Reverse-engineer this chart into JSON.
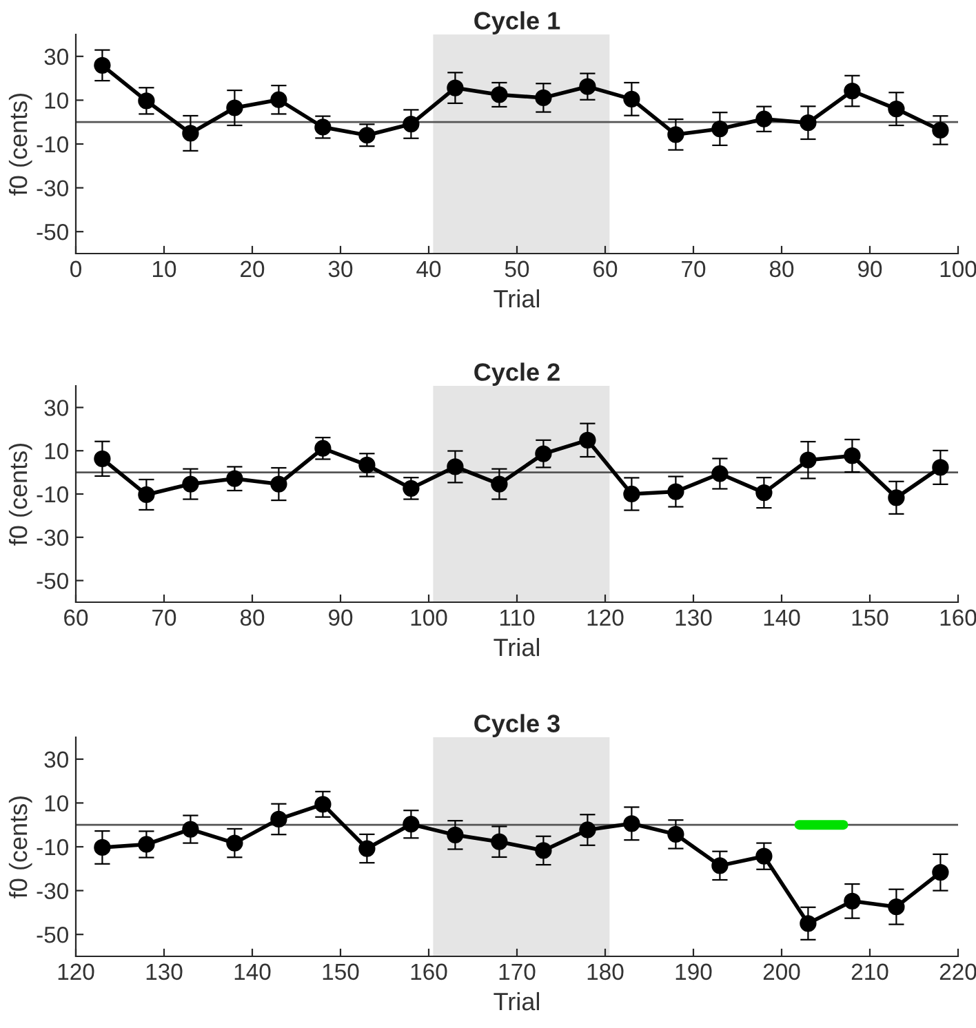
{
  "chart_data": [
    {
      "type": "line",
      "title": "Cycle 1",
      "xlabel": "Trial",
      "ylabel": "f0 (cents)",
      "xlim": [
        0,
        100
      ],
      "xticks": [
        0,
        10,
        20,
        30,
        40,
        50,
        60,
        70,
        80,
        90,
        100
      ],
      "ylim": [
        -60,
        40
      ],
      "yticks": [
        -50,
        -30,
        -10,
        10,
        30
      ],
      "marker": "circle",
      "grid": false,
      "legend": false,
      "series": [
        {
          "color": "#000000",
          "x": [
            3,
            8,
            13,
            18,
            23,
            28,
            33,
            38,
            43,
            48,
            53,
            58,
            63,
            68,
            73,
            78,
            83,
            88,
            93,
            98
          ],
          "values": [
            25.9,
            9.7,
            -5.1,
            6.5,
            10.2,
            -2.3,
            -6,
            -0.9,
            15.6,
            12.5,
            11.1,
            16.2,
            10.5,
            -5.7,
            -3.1,
            1.4,
            -0.3,
            14.2,
            6,
            -3.7
          ],
          "errors": [
            7,
            6,
            8,
            8,
            6.5,
            5,
            5,
            6.5,
            7,
            5.5,
            6.5,
            6,
            7.5,
            7,
            7.5,
            5.7,
            7.5,
            7,
            7.5,
            6.5
          ]
        }
      ],
      "ref_lines": [
        {
          "axis": "y",
          "value": 0,
          "color": "#555555"
        }
      ],
      "bands": [
        {
          "axis": "x",
          "from": 40.5,
          "to": 60.5,
          "color": "#e5e5e5"
        }
      ]
    },
    {
      "type": "line",
      "title": "Cycle 2",
      "xlabel": "Trial",
      "ylabel": "f0 (cents)",
      "xlim": [
        60,
        160
      ],
      "xticks": [
        60,
        70,
        80,
        90,
        100,
        110,
        120,
        130,
        140,
        150,
        160
      ],
      "ylim": [
        -60,
        40
      ],
      "yticks": [
        -50,
        -30,
        -10,
        10,
        30
      ],
      "marker": "circle",
      "grid": false,
      "legend": false,
      "series": [
        {
          "color": "#000000",
          "x": [
            63,
            68,
            73,
            78,
            83,
            88,
            93,
            98,
            103,
            108,
            113,
            118,
            123,
            128,
            133,
            138,
            143,
            148,
            153,
            158
          ],
          "values": [
            6.3,
            -10.3,
            -5.4,
            -2.9,
            -5.4,
            11.1,
            3.4,
            -7.4,
            2.6,
            -5.4,
            8.6,
            14.9,
            -10,
            -8.9,
            -0.6,
            -9.4,
            5.7,
            7.7,
            -11.7,
            2.3
          ],
          "errors": [
            8,
            7,
            7,
            5.5,
            7.5,
            5,
            5.3,
            5,
            7.3,
            7,
            6.3,
            7.7,
            7.5,
            7,
            7,
            7,
            8.5,
            7.5,
            7.5,
            7.8
          ]
        }
      ],
      "ref_lines": [
        {
          "axis": "y",
          "value": 0,
          "color": "#555555"
        }
      ],
      "bands": [
        {
          "axis": "x",
          "from": 100.5,
          "to": 120.5,
          "color": "#e5e5e5"
        }
      ]
    },
    {
      "type": "line",
      "title": "Cycle 3",
      "xlabel": "Trial",
      "ylabel": "f0 (cents)",
      "xlim": [
        120,
        220
      ],
      "xticks": [
        120,
        130,
        140,
        150,
        160,
        170,
        180,
        190,
        200,
        210,
        220
      ],
      "ylim": [
        -60,
        40
      ],
      "yticks": [
        -50,
        -30,
        -10,
        10,
        30
      ],
      "marker": "circle",
      "grid": false,
      "legend": false,
      "series": [
        {
          "color": "#000000",
          "x": [
            123,
            128,
            133,
            138,
            143,
            148,
            153,
            158,
            163,
            168,
            173,
            178,
            183,
            188,
            193,
            198,
            203,
            208,
            213,
            218
          ],
          "values": [
            -10.3,
            -8.9,
            -2,
            -8.3,
            2.6,
            9.4,
            -10.8,
            0.3,
            -4.6,
            -7.7,
            -11.7,
            -2.3,
            0.6,
            -4.3,
            -18.6,
            -14.3,
            -45,
            -34.8,
            -37.4,
            -21.7
          ],
          "errors": [
            7.5,
            6,
            6.3,
            6.5,
            7,
            5.8,
            6.5,
            6.3,
            6.5,
            7,
            6.5,
            7,
            7.5,
            6.5,
            6.5,
            6,
            7.4,
            7.8,
            8,
            8.3
          ]
        },
        {
          "color": "#00e000",
          "x": [
            202,
            207
          ],
          "values": [
            0,
            0
          ],
          "marker": "none"
        }
      ],
      "ref_lines": [
        {
          "axis": "y",
          "value": 0,
          "color": "#555555"
        }
      ],
      "bands": [
        {
          "axis": "x",
          "from": 160.5,
          "to": 180.5,
          "color": "#e5e5e5"
        }
      ]
    }
  ]
}
